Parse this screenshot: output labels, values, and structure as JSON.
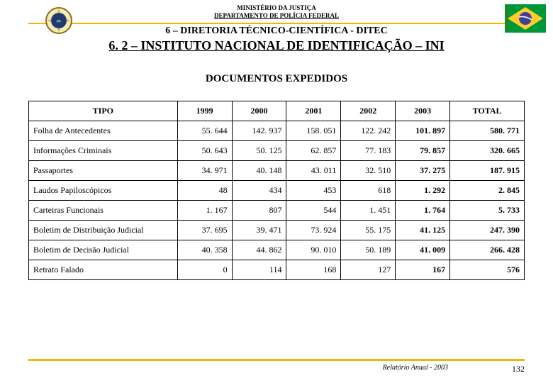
{
  "header": {
    "ministry_line1": "MINISTÉRIO DA JUSTIÇA",
    "ministry_line2": "DEPARTAMENTO DE POLÍCIA FEDERAL",
    "subtitle1": "6 – DIRETORIA TÉCNICO-CIENTÍFICA - DITEC",
    "subtitle2": "6. 2 – INSTITUTO NACIONAL DE IDENTIFICAÇÃO – INI"
  },
  "section_title": "DOCUMENTOS EXPEDIDOS",
  "table": {
    "type": "table",
    "columns": [
      "TIPO",
      "1999",
      "2000",
      "2001",
      "2002",
      "2003",
      "TOTAL"
    ],
    "col_widths_pct": [
      30,
      11,
      11,
      11,
      11,
      11,
      15
    ],
    "header_bg": "#ffffff",
    "border_color": "#000000",
    "font_size": 12,
    "rows": [
      {
        "label": "Folha de Antecedentes",
        "vals": [
          "55. 644",
          "142. 937",
          "158. 051",
          "122. 242",
          "101. 897",
          "580. 771"
        ]
      },
      {
        "label": "Informações Criminais",
        "vals": [
          "50. 643",
          "50. 125",
          "62. 857",
          "77. 183",
          "79. 857",
          "320. 665"
        ]
      },
      {
        "label": "Passaportes",
        "vals": [
          "34. 971",
          "40. 148",
          "43. 011",
          "32. 510",
          "37. 275",
          "187. 915"
        ]
      },
      {
        "label": "Laudos Papiloscópicos",
        "vals": [
          "48",
          "434",
          "453",
          "618",
          "1. 292",
          "2. 845"
        ]
      },
      {
        "label": "Carteiras Funcionais",
        "vals": [
          "1. 167",
          "807",
          "544",
          "1. 451",
          "1. 764",
          "5. 733"
        ]
      },
      {
        "label": "Boletim de Distribuição Judicial",
        "vals": [
          "37. 695",
          "39. 471",
          "73. 924",
          "55. 175",
          "41. 125",
          "247. 390"
        ]
      },
      {
        "label": "Boletim de Decisão Judicial",
        "vals": [
          "40. 358",
          "44. 862",
          "90. 010",
          "50. 189",
          "41. 009",
          "266. 428"
        ]
      },
      {
        "label": "Retrato Falado",
        "vals": [
          "0",
          "114",
          "168",
          "127",
          "167",
          "576"
        ]
      }
    ],
    "bold_cols": [
      4,
      5
    ]
  },
  "footer": {
    "report_label": "Relatório Anual - 2003",
    "page_number": "132"
  },
  "colors": {
    "accent_rule": "#f2b600",
    "text": "#000000",
    "background": "#ffffff"
  }
}
